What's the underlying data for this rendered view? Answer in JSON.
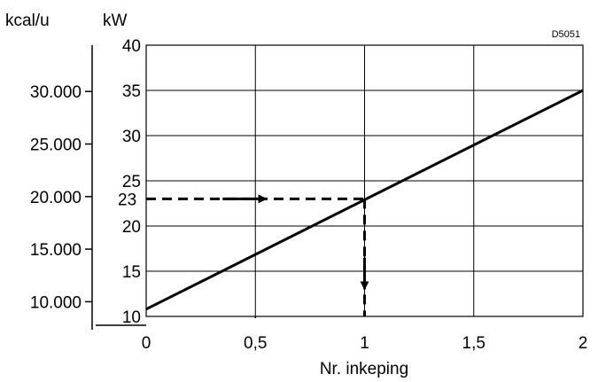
{
  "chart_data": {
    "type": "line",
    "title": "",
    "code": "D5051",
    "xlabel": "Nr. inkeping",
    "ylabel": "kW",
    "y2label": "kcal/u",
    "xlim": [
      0,
      2
    ],
    "ylim": [
      10,
      40
    ],
    "x_ticks": [
      0,
      0.5,
      1,
      1.5,
      2
    ],
    "x_tick_labels": [
      "0",
      "0,5",
      "1",
      "1,5",
      "2"
    ],
    "y_ticks": [
      10,
      15,
      20,
      25,
      30,
      35,
      40
    ],
    "y_tick_labels": [
      "10",
      "15",
      "20",
      "25",
      "30",
      "35",
      "40"
    ],
    "y2_ticks": [
      10000,
      15000,
      20000,
      25000,
      30000
    ],
    "y2_tick_labels": [
      "10.000",
      "15.000",
      "20.000",
      "25.000",
      "30.000"
    ],
    "grid": true,
    "series": [
      {
        "x": [
          0,
          2
        ],
        "y": [
          10.8,
          35
        ]
      }
    ],
    "annotation": {
      "value_label": "23",
      "x": 1,
      "y": 23
    }
  }
}
